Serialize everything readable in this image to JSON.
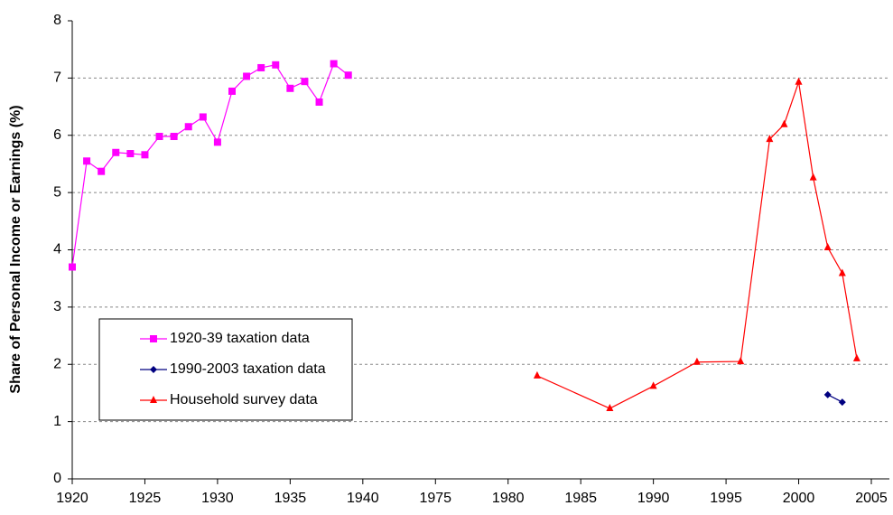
{
  "chart_data": {
    "type": "line",
    "y_label": "Share of Personal Income or Earnings (%)",
    "xlim": [
      1920,
      2005
    ],
    "xticks": [
      1920,
      1925,
      1930,
      1935,
      1940,
      1975,
      1980,
      1985,
      1990,
      1995,
      2000,
      2005
    ],
    "ylim": [
      0,
      8
    ],
    "yticks": [
      0,
      1,
      2,
      3,
      4,
      5,
      6,
      7,
      8
    ],
    "grid": true,
    "legend": "lower left",
    "series": [
      {
        "name": "1920-39 taxation data",
        "color": "#ff00ff",
        "marker": "square",
        "x": [
          1920,
          1921,
          1922,
          1923,
          1924,
          1925,
          1926,
          1927,
          1928,
          1929,
          1930,
          1931,
          1932,
          1933,
          1934,
          1935,
          1936,
          1937,
          1938,
          1939
        ],
        "values": [
          3.7,
          5.55,
          5.37,
          5.7,
          5.68,
          5.66,
          5.98,
          5.98,
          6.15,
          6.32,
          5.88,
          6.77,
          7.03,
          7.18,
          7.23,
          6.82,
          6.94,
          6.58,
          7.25,
          7.05
        ]
      },
      {
        "name": "1990-2003 taxation data",
        "color": "#000080",
        "marker": "diamond",
        "x": [
          2002,
          2003
        ],
        "values": [
          1.47,
          1.34
        ]
      },
      {
        "name": "Household survey data",
        "color": "#ff0000",
        "marker": "triangle",
        "x": [
          1982,
          1987,
          1990,
          1993,
          1996,
          1998,
          1999,
          2000,
          2001,
          2002,
          2003,
          2004
        ],
        "values": [
          1.8,
          1.23,
          1.62,
          2.04,
          2.05,
          5.93,
          6.19,
          6.93,
          5.26,
          4.04,
          3.59,
          2.1
        ]
      }
    ]
  }
}
